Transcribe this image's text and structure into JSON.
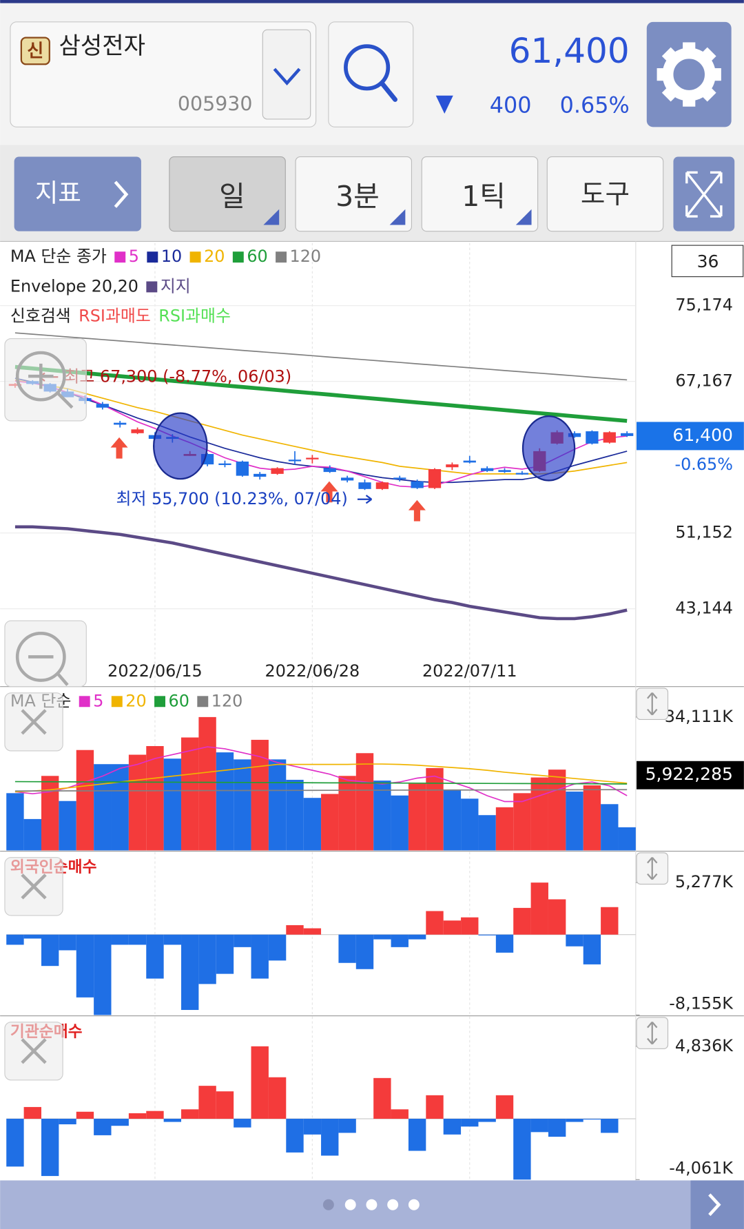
{
  "header": {
    "badge": "신",
    "name": "삼성전자",
    "code": "005930",
    "price": "61,400",
    "change": "400",
    "change_pct": "0.65%"
  },
  "toolbar": {
    "indicator": "지표",
    "periods": [
      "일",
      "3분",
      "1틱"
    ],
    "tool": "도구"
  },
  "chart_data": [
    {
      "type": "candlestick",
      "legend_title": "MA 단순 종가",
      "envelope_label": "Envelope 20,20",
      "signal_label": "신호검색",
      "signals": [
        "RSI과매도",
        "RSI과매수"
      ],
      "signal_colors": [
        "#f04a4a",
        "#55e055"
      ],
      "count": "36",
      "categories": [
        null,
        null,
        null,
        null,
        null,
        null,
        null,
        null,
        "2022/06/15",
        null,
        null,
        null,
        null,
        null,
        null,
        null,
        null,
        "2022/06/28",
        null,
        null,
        null,
        null,
        null,
        null,
        null,
        null,
        "2022/07/11",
        null,
        null,
        null,
        null,
        null,
        null,
        null,
        null,
        null
      ],
      "open": [
        66700,
        67200,
        66900,
        66100,
        65400,
        64800,
        62800,
        61700,
        61500,
        61300,
        59300,
        59500,
        58500,
        58700,
        57400,
        57400,
        58900,
        59000,
        58000,
        57000,
        56500,
        55800,
        57000,
        56600,
        55900,
        58100,
        58800,
        58000,
        57800,
        57500,
        57700,
        60600,
        61700,
        61900,
        60700,
        61700
      ],
      "high": [
        67000,
        67300,
        67000,
        66400,
        65700,
        65000,
        63000,
        62300,
        61800,
        61600,
        59800,
        59600,
        58800,
        58800,
        57600,
        58100,
        59800,
        59400,
        58300,
        57200,
        56800,
        56600,
        57200,
        56800,
        58000,
        58600,
        59300,
        58200,
        58000,
        57700,
        60100,
        62000,
        61900,
        62000,
        61900,
        61900
      ],
      "low": [
        66500,
        66800,
        66000,
        65500,
        64800,
        64200,
        62300,
        61600,
        61000,
        60700,
        59300,
        58200,
        58100,
        57100,
        56800,
        57300,
        58400,
        58500,
        57500,
        56500,
        55700,
        55700,
        56600,
        55800,
        55800,
        57800,
        58500,
        57600,
        57500,
        57300,
        57600,
        60500,
        61200,
        60500,
        60600,
        61300
      ],
      "close": [
        66900,
        66900,
        66100,
        65500,
        65100,
        64400,
        62600,
        62100,
        61100,
        61100,
        59500,
        58400,
        58400,
        57200,
        57100,
        58000,
        58800,
        59100,
        57600,
        56700,
        55800,
        56500,
        56900,
        55900,
        57900,
        58400,
        58600,
        57700,
        57600,
        57400,
        59800,
        61800,
        61300,
        60600,
        61800,
        61400
      ],
      "up_color": "#f43b3b",
      "down_color": "#1f6fe5",
      "series": [
        {
          "name": "5",
          "color": "#e030c8",
          "values": [
            67200,
            67000,
            66600,
            66000,
            65500,
            64700,
            63800,
            62900,
            62200,
            61400,
            60700,
            59900,
            59100,
            58500,
            58000,
            57800,
            57900,
            58200,
            58100,
            57700,
            57100,
            56500,
            56100,
            56000,
            56200,
            56700,
            57300,
            57800,
            58100,
            57900,
            58200,
            59100,
            60000,
            60800,
            61200,
            61400
          ]
        },
        {
          "name": "10",
          "color": "#1a2a9a",
          "values": [
            67500,
            67100,
            66600,
            66000,
            65300,
            64700,
            64000,
            63300,
            62700,
            62000,
            61300,
            60700,
            60100,
            59600,
            59100,
            58700,
            58400,
            58200,
            58000,
            57700,
            57300,
            57000,
            56800,
            56600,
            56500,
            56500,
            56600,
            56700,
            56800,
            56800,
            57100,
            57700,
            58300,
            58800,
            59300,
            59800
          ]
        },
        {
          "name": "20",
          "color": "#f0b400",
          "values": [
            67300,
            67000,
            66700,
            66400,
            65900,
            65400,
            64900,
            64400,
            64000,
            63500,
            63000,
            62500,
            62000,
            61500,
            61100,
            60700,
            60300,
            59900,
            59500,
            59200,
            58900,
            58600,
            58200,
            58000,
            57800,
            57600,
            57400,
            57400,
            57400,
            57400,
            57400,
            57500,
            57700,
            58000,
            58300,
            58600
          ]
        },
        {
          "name": "60",
          "color": "#1f9e3a",
          "values": [
            68700,
            68540,
            68370,
            68210,
            68050,
            67880,
            67720,
            67560,
            67400,
            67230,
            67070,
            66910,
            66740,
            66580,
            66420,
            66260,
            66090,
            65930,
            65770,
            65600,
            65440,
            65280,
            65110,
            64950,
            64790,
            64630,
            64460,
            64300,
            64140,
            63970,
            63810,
            63650,
            63480,
            63320,
            63160,
            63000
          ]
        },
        {
          "name": "120",
          "color": "#808080",
          "values": [
            72300,
            72160,
            72020,
            71870,
            71730,
            71590,
            71450,
            71310,
            71160,
            71020,
            70880,
            70740,
            70600,
            70450,
            70310,
            70170,
            70030,
            69890,
            69740,
            69600,
            69460,
            69320,
            69180,
            69030,
            68890,
            68750,
            68610,
            68470,
            68320,
            68180,
            68040,
            67900,
            67760,
            67610,
            67470,
            67330
          ]
        }
      ],
      "envelope": {
        "name": "지지",
        "color": "#5b4a86",
        "values": [
          51800,
          51800,
          51700,
          51600,
          51400,
          51200,
          51000,
          50700,
          50400,
          50100,
          49700,
          49300,
          48900,
          48500,
          48100,
          47700,
          47300,
          46900,
          46500,
          46100,
          45700,
          45300,
          44900,
          44500,
          44100,
          43800,
          43400,
          43100,
          42800,
          42500,
          42200,
          42100,
          42100,
          42300,
          42600,
          43000
        ]
      },
      "ylim": [
        35000,
        81800
      ],
      "yticks": [
        {
          "value": 75174,
          "label": "75,174"
        },
        {
          "value": 67167,
          "label": "67,167"
        },
        {
          "value": 51152,
          "label": "51,152"
        },
        {
          "value": 43144,
          "label": "43,144"
        }
      ],
      "current": {
        "value": 61400,
        "label": "61,400"
      },
      "current_change": "-0.65%",
      "annotations": [
        "최고 67,300 (-8.77%, 06/03)",
        "최저 55,700 (10.23%, 07/04)"
      ]
    },
    {
      "type": "bar",
      "legend_title": "MA 단순",
      "values": [
        14650000,
        8030000,
        19060000,
        12640000,
        25680000,
        22070000,
        22070000,
        24480000,
        26690000,
        23480000,
        28890000,
        34111000,
        25080000,
        23280000,
        28290000,
        23280000,
        18060000,
        13440000,
        14450000,
        19060000,
        24880000,
        17860000,
        14050000,
        17060000,
        21070000,
        15450000,
        13240000,
        9030000,
        11040000,
        14650000,
        18660000,
        20670000,
        15050000,
        16650000,
        11840000,
        5922285
      ],
      "colors": [
        "#1f6fe5",
        "#1f6fe5",
        "#f43b3b",
        "#1f6fe5",
        "#f43b3b",
        "#1f6fe5",
        "#1f6fe5",
        "#f43b3b",
        "#f43b3b",
        "#1f6fe5",
        "#f43b3b",
        "#f43b3b",
        "#1f6fe5",
        "#1f6fe5",
        "#f43b3b",
        "#1f6fe5",
        "#1f6fe5",
        "#1f6fe5",
        "#f43b3b",
        "#f43b3b",
        "#f43b3b",
        "#1f6fe5",
        "#1f6fe5",
        "#f43b3b",
        "#f43b3b",
        "#1f6fe5",
        "#1f6fe5",
        "#1f6fe5",
        "#f43b3b",
        "#f43b3b",
        "#f43b3b",
        "#f43b3b",
        "#1f6fe5",
        "#f43b3b",
        "#1f6fe5",
        "#1f6fe5"
      ],
      "series": [
        {
          "name": "5",
          "color": "#e030c8",
          "values": [
            15000000,
            14500000,
            15000000,
            16000000,
            17500000,
            19000000,
            21000000,
            22000000,
            23500000,
            24500000,
            25500000,
            26500000,
            26000000,
            25000000,
            24000000,
            22500000,
            21500000,
            20500000,
            19500000,
            18000000,
            17500000,
            17000000,
            17500000,
            18500000,
            19000000,
            17500000,
            16000000,
            14000000,
            12500000,
            12500000,
            14000000,
            15500000,
            17000000,
            17500000,
            16500000,
            14000000
          ]
        },
        {
          "name": "20",
          "color": "#f0b400",
          "values": [
            15000000,
            15200000,
            15500000,
            16000000,
            16500000,
            17000000,
            17500000,
            18000000,
            18500000,
            19000000,
            19500000,
            20000000,
            20500000,
            21000000,
            21500000,
            22000000,
            22000000,
            22000000,
            22000000,
            22000000,
            22100000,
            22100000,
            22000000,
            21800000,
            21500000,
            21200000,
            20900000,
            20500000,
            20000000,
            19600000,
            19200000,
            18800000,
            18400000,
            18000000,
            17600000,
            17200000
          ]
        },
        {
          "name": "60",
          "color": "#1f9e3a",
          "values": [
            17600000,
            17580000,
            17570000,
            17550000,
            17530000,
            17520000,
            17500000,
            17480000,
            17460000,
            17450000,
            17430000,
            17410000,
            17400000,
            17380000,
            17360000,
            17350000,
            17330000,
            17310000,
            17290000,
            17280000,
            17260000,
            17240000,
            17230000,
            17210000,
            17190000,
            17180000,
            17160000,
            17140000,
            17120000,
            17110000,
            17090000,
            17070000,
            17060000,
            17040000,
            17020000,
            17000000
          ]
        },
        {
          "name": "120",
          "color": "#808080",
          "values": [
            15200000,
            15210000,
            15220000,
            15230000,
            15240000,
            15250000,
            15260000,
            15270000,
            15280000,
            15290000,
            15300000,
            15310000,
            15320000,
            15330000,
            15340000,
            15350000,
            15360000,
            15370000,
            15380000,
            15390000,
            15400000,
            15410000,
            15420000,
            15430000,
            15440000,
            15450000,
            15460000,
            15470000,
            15480000,
            15490000,
            15500000,
            15510000,
            15520000,
            15530000,
            15540000,
            15550000
          ]
        }
      ],
      "ylim": [
        0,
        41700000
      ],
      "yticks": [
        {
          "value": 34111000,
          "label": "34,111K"
        }
      ],
      "current": {
        "value": 5922285,
        "label": "5,922,285"
      }
    },
    {
      "type": "bar",
      "title": "외국인순매수",
      "up_color": "#f43b3b",
      "down_color": "#1f6fe5",
      "values": [
        -1030000,
        -400000,
        -3180000,
        -1590000,
        -6370000,
        -8155000,
        -1030000,
        -1030000,
        -4460000,
        -1030000,
        -7640000,
        -5010000,
        -3980000,
        -1270000,
        -4460000,
        -2630000,
        960000,
        640000,
        0,
        -2870000,
        -3500000,
        -480000,
        -1270000,
        -480000,
        2390000,
        1430000,
        1750000,
        -80000,
        -1830000,
        2710000,
        5277000,
        3580000,
        -1190000,
        -3020000,
        2790000,
        0
      ],
      "ylim": [
        -8155000,
        8380000
      ],
      "yticks": [
        {
          "value": 5277000,
          "label": "5,277K"
        },
        {
          "value": -8155000,
          "label": "-8,155K"
        }
      ]
    },
    {
      "type": "bar",
      "title": "기관순매수",
      "up_color": "#f43b3b",
      "down_color": "#1f6fe5",
      "values": [
        -3190000,
        785000,
        -3820000,
        -370000,
        470000,
        -1100000,
        -470000,
        370000,
        520000,
        -210000,
        630000,
        2200000,
        1830000,
        -580000,
        4836000,
        2770000,
        -2250000,
        -1050000,
        -2460000,
        -940000,
        0,
        2720000,
        630000,
        -2140000,
        1570000,
        -1050000,
        -520000,
        -210000,
        1570000,
        -4061000,
        -890000,
        -1200000,
        -210000,
        -50000,
        -940000,
        0
      ],
      "ylim": [
        -4061000,
        6820000
      ],
      "yticks": [
        {
          "value": 4836000,
          "label": "4,836K"
        },
        {
          "value": -4061000,
          "label": "-4,061K"
        }
      ]
    }
  ]
}
